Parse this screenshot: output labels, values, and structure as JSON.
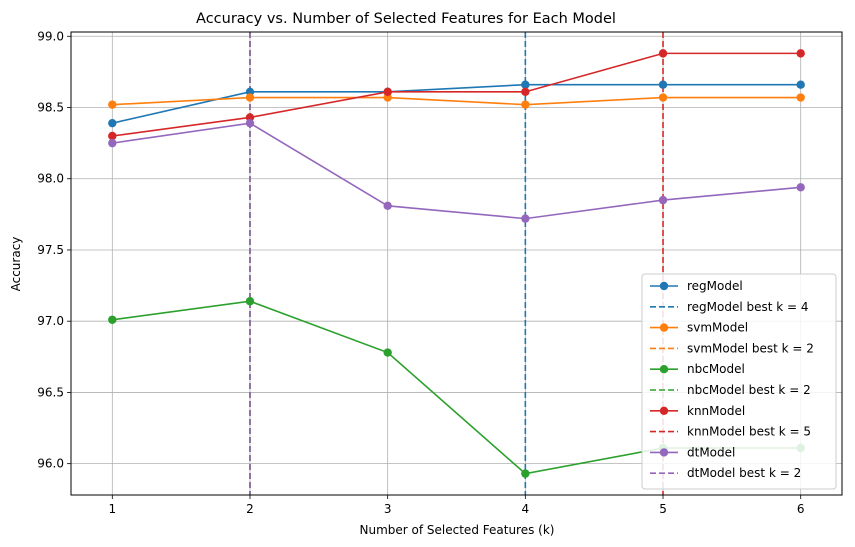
{
  "chart_data": {
    "type": "line",
    "title": "Accuracy vs. Number of Selected Features for Each Model",
    "xlabel": "Number of Selected Features (k)",
    "ylabel": "Accuracy",
    "x": [
      1,
      2,
      3,
      4,
      5,
      6
    ],
    "xlim": [
      0.7,
      6.3
    ],
    "ylim": [
      95.78,
      99.03
    ],
    "yticks": [
      96.0,
      96.5,
      97.0,
      97.5,
      98.0,
      98.5,
      99.0
    ],
    "ytick_labels": [
      "96.0",
      "96.5",
      "97.0",
      "97.5",
      "98.0",
      "98.5",
      "99.0"
    ],
    "xtick_labels": [
      "1",
      "2",
      "3",
      "4",
      "5",
      "6"
    ],
    "grid": true,
    "legend_position": "lower-right",
    "series": [
      {
        "name": "regModel",
        "color": "#1f77b4",
        "values": [
          98.39,
          98.61,
          98.61,
          98.66,
          98.66,
          98.66
        ],
        "best_k": 4,
        "best_label": "regModel best k = 4"
      },
      {
        "name": "svmModel",
        "color": "#ff7f0e",
        "values": [
          98.52,
          98.57,
          98.57,
          98.52,
          98.57,
          98.57
        ],
        "best_k": 2,
        "best_label": "svmModel best k = 2"
      },
      {
        "name": "nbcModel",
        "color": "#2ca02c",
        "values": [
          97.01,
          97.14,
          96.78,
          95.93,
          96.11,
          96.11
        ],
        "best_k": 2,
        "best_label": "nbcModel best k = 2"
      },
      {
        "name": "knnModel",
        "color": "#d62728",
        "values": [
          98.3,
          98.43,
          98.61,
          98.61,
          98.88,
          98.88
        ],
        "best_k": 5,
        "best_label": "knnModel best k = 5"
      },
      {
        "name": "dtModel",
        "color": "#9467bd",
        "values": [
          98.25,
          98.39,
          97.81,
          97.72,
          97.85,
          97.94
        ],
        "best_k": 2,
        "best_label": "dtModel best k = 2"
      }
    ]
  }
}
